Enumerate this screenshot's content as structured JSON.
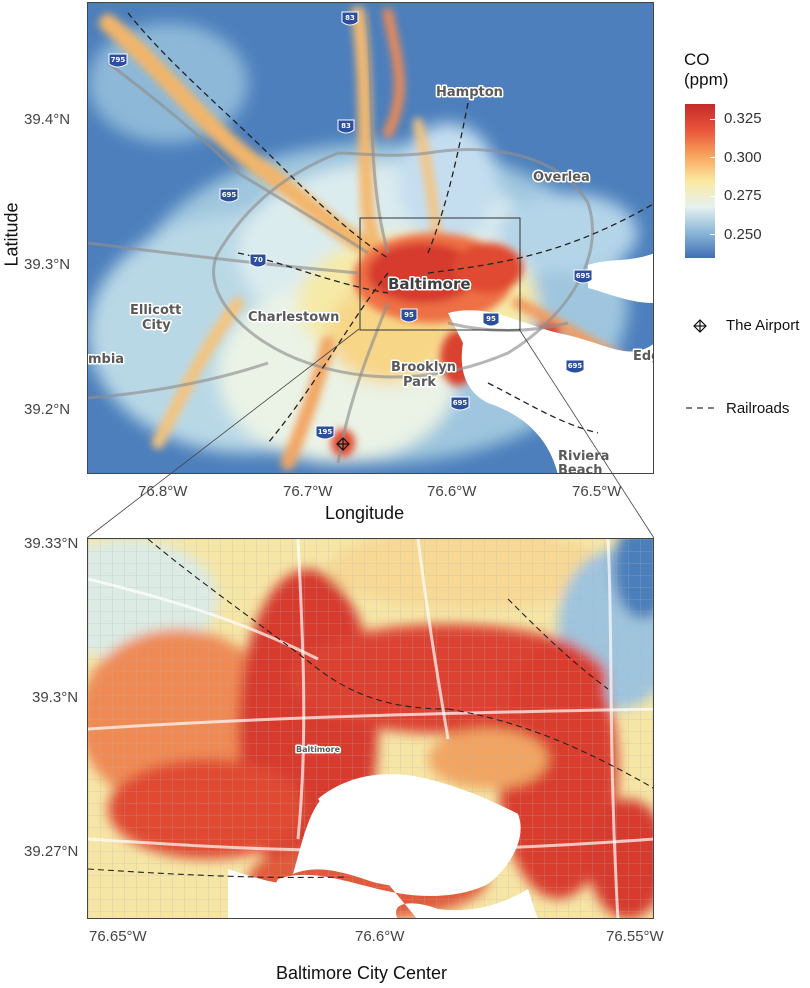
{
  "top_panel": {
    "x_axis_title": "Longitude",
    "y_axis_title": "Latitude",
    "x_ticks": [
      "76.8°W",
      "76.7°W",
      "76.6°W",
      "76.5°W"
    ],
    "y_ticks": [
      "39.4°N",
      "39.3°N",
      "39.2°N"
    ],
    "places": {
      "hampton": "Hampton",
      "overlea": "Overlea",
      "baltimore": "Baltimore",
      "charlestown": "Charlestown",
      "ellicott_city": "Ellicott City",
      "ellicott_city_line1": "Ellicott",
      "ellicott_city_line2": "City",
      "columbia_fragment": "mbia",
      "brooklyn_park_line1": "Brooklyn",
      "brooklyn_park_line2": "Park",
      "riviera_beach_line1": "Riviera",
      "riviera_beach_line2": "Beach",
      "edge_fragment": "Edg"
    },
    "highway_shields": [
      "83",
      "795",
      "83",
      "695",
      "70",
      "695",
      "95",
      "95",
      "695",
      "195",
      "695"
    ]
  },
  "bottom_panel": {
    "x_axis_title": "Baltimore City Center",
    "x_ticks": [
      "76.65°W",
      "76.6°W",
      "76.55°W"
    ],
    "y_ticks": [
      "39.33°N",
      "39.3°N",
      "39.27°N"
    ],
    "baltimore_label": "Baltimore"
  },
  "legend": {
    "title_line1": "CO",
    "title_line2": "(ppm)",
    "ticks": [
      "0.325",
      "0.300",
      "0.275",
      "0.250"
    ],
    "tick_values": [
      0.325,
      0.3,
      0.275,
      0.25
    ],
    "range": [
      0.235,
      0.335
    ],
    "colors": [
      "#3f6fb4",
      "#8cb8d8",
      "#e6f2f0",
      "#fbe9a2",
      "#f9a35b",
      "#e8543b",
      "#c42a2a"
    ],
    "airport_label": "The Airport",
    "airport_icon": "crosshair-diamond-icon",
    "railroads_label": "Railroads"
  }
}
